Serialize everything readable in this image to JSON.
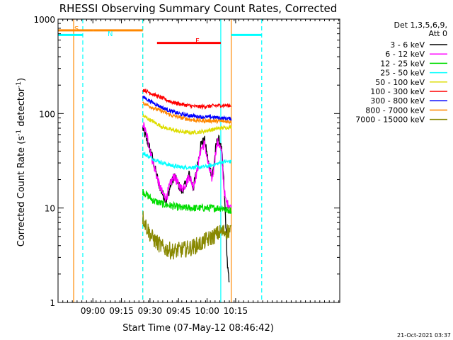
{
  "chart_data": {
    "type": "line",
    "title": "RHESSI Observing Summary Count Rates, Corrected",
    "ylabel_prefix": "Corrected Count Rate (s",
    "ylabel_sup": "-1",
    "ylabel_mid": " detector",
    "ylabel_sup2": "-1",
    "ylabel_suffix": ")",
    "xlabel": "Start Time (07-May-12 08:46:42)",
    "x_range_min": [
      -5,
      143
    ],
    "y_range": [
      1,
      1000
    ],
    "y_scale": "log",
    "yticks": [
      {
        "value": 1,
        "label": "1"
      },
      {
        "value": 10,
        "label": "10"
      },
      {
        "value": 100,
        "label": "100"
      },
      {
        "value": 1000,
        "label": "1000"
      }
    ],
    "xticks": [
      {
        "value": 13.3,
        "label": "09:00"
      },
      {
        "value": 28.3,
        "label": "09:15"
      },
      {
        "value": 43.3,
        "label": "09:30"
      },
      {
        "value": 58.3,
        "label": "09:45"
      },
      {
        "value": 73.3,
        "label": "10:00"
      },
      {
        "value": 88.3,
        "label": "10:15"
      }
    ],
    "legend": {
      "title_lines": [
        "Det 1,3,5,6,9,",
        "Att 0"
      ],
      "position": "right",
      "entries": [
        {
          "label": "3 - 6 keV",
          "color": "#000000"
        },
        {
          "label": "6 - 12 keV",
          "color": "#ff00ff"
        },
        {
          "label": "12 - 25 keV",
          "color": "#00dd00"
        },
        {
          "label": "25 - 50 keV",
          "color": "#00ffff"
        },
        {
          "label": "50 - 100 keV",
          "color": "#dddd00"
        },
        {
          "label": "100 - 300 keV",
          "color": "#ff0000"
        },
        {
          "label": "300 - 800 keV",
          "color": "#0000ff"
        },
        {
          "label": "800 - 7000 keV",
          "color": "#ff8800"
        },
        {
          "label": "7000 - 15000 keV",
          "color": "#888800"
        }
      ]
    },
    "series": [
      {
        "name": "3 - 6 keV",
        "color": "#000000",
        "noise": 0.05,
        "x": [
          39.5,
          42,
          44,
          46,
          48,
          50,
          52,
          54,
          56,
          58,
          60,
          62,
          64,
          66,
          68,
          70,
          72,
          74,
          76,
          77,
          78,
          79,
          80,
          81,
          82,
          83,
          84,
          85
        ],
        "y": [
          70,
          50,
          38,
          26,
          18,
          14,
          12,
          17,
          22,
          18,
          15,
          18,
          23,
          16,
          26,
          48,
          52,
          30,
          22,
          30,
          45,
          55,
          50,
          40,
          20,
          8,
          2.5,
          1.5
        ]
      },
      {
        "name": "6 - 12 keV",
        "color": "#ff00ff",
        "noise": 0.05,
        "x": [
          39.5,
          42,
          44,
          46,
          48,
          50,
          52,
          54,
          56,
          58,
          60,
          62,
          64,
          66,
          68,
          70,
          72,
          74,
          76,
          77,
          78,
          79,
          80,
          81,
          82,
          83,
          84,
          85,
          86
        ],
        "y": [
          80,
          55,
          36,
          25,
          18,
          14,
          13,
          18,
          22,
          18,
          16,
          18,
          22,
          17,
          24,
          42,
          48,
          28,
          20,
          28,
          42,
          50,
          45,
          38,
          18,
          12,
          11,
          11,
          10
        ]
      },
      {
        "name": "12 - 25 keV",
        "color": "#00dd00",
        "noise": 0.04,
        "x": [
          39.5,
          45,
          50,
          55,
          60,
          65,
          70,
          75,
          80,
          82,
          83,
          86
        ],
        "y": [
          15,
          12,
          11,
          10.5,
          10,
          10,
          10,
          10,
          10,
          10,
          9.5,
          9.5
        ]
      },
      {
        "name": "25 - 50 keV",
        "color": "#00ffff",
        "noise": 0.02,
        "x": [
          39.5,
          45,
          50,
          55,
          60,
          65,
          70,
          75,
          80,
          82,
          86
        ],
        "y": [
          38,
          33,
          30,
          28,
          27,
          27,
          27,
          28,
          30,
          31,
          31
        ]
      },
      {
        "name": "50 - 100 keV",
        "color": "#dddd00",
        "noise": 0.02,
        "x": [
          39.5,
          45,
          50,
          55,
          60,
          65,
          70,
          75,
          80,
          86
        ],
        "y": [
          95,
          82,
          72,
          67,
          64,
          63,
          64,
          67,
          70,
          72
        ]
      },
      {
        "name": "100 - 300 keV",
        "color": "#ff0000",
        "noise": 0.02,
        "x": [
          39.5,
          45,
          50,
          55,
          60,
          65,
          70,
          75,
          80,
          86
        ],
        "y": [
          180,
          160,
          145,
          132,
          125,
          120,
          118,
          120,
          122,
          122
        ]
      },
      {
        "name": "300 - 800 keV",
        "color": "#0000ff",
        "noise": 0.02,
        "x": [
          39.5,
          45,
          50,
          55,
          60,
          65,
          70,
          75,
          80,
          86
        ],
        "y": [
          150,
          130,
          115,
          105,
          98,
          95,
          92,
          92,
          90,
          88
        ]
      },
      {
        "name": "800 - 7000 keV",
        "color": "#ff8800",
        "noise": 0.02,
        "x": [
          39.5,
          45,
          50,
          55,
          60,
          65,
          70,
          75,
          80,
          86
        ],
        "y": [
          130,
          115,
          105,
          95,
          90,
          86,
          84,
          84,
          83,
          82
        ]
      },
      {
        "name": "7000 - 15000 keV",
        "color": "#888800",
        "noise": 0.09,
        "x": [
          39.5,
          42,
          44,
          46,
          50,
          55,
          60,
          65,
          70,
          75,
          80,
          86
        ],
        "y": [
          8,
          6,
          5,
          4.5,
          3.8,
          3.5,
          3.6,
          3.8,
          4.2,
          4.8,
          5.5,
          5.8
        ]
      }
    ],
    "bars": [
      {
        "label": "S",
        "color": "#ff8800",
        "x_start": -5,
        "x_end": 13.3,
        "y": 760,
        "line": "none"
      },
      {
        "label": "",
        "color": "#ff8800",
        "x_start": 13.3,
        "x_end": 39.5,
        "y": 760,
        "line": "none"
      },
      {
        "label": "N",
        "color": "#00ffff",
        "x_start": -5,
        "x_end": 8,
        "y": 680,
        "line": "none"
      },
      {
        "label": "",
        "color": "#00ffff",
        "x_start": 86,
        "x_end": 102,
        "y": 680,
        "line": "none"
      },
      {
        "label": "F",
        "color": "#ff0000",
        "x_start": 47,
        "x_end": 80.5,
        "y": 560,
        "line": "none"
      }
    ],
    "vlines": [
      {
        "x": 3.2,
        "color": "#ff8800",
        "style": "solid"
      },
      {
        "x": 8,
        "color": "#00ffff",
        "style": "dashed"
      },
      {
        "x": 39.5,
        "color": "#ff8800",
        "style": "dashed"
      },
      {
        "x": 39.5,
        "color": "#00ffff",
        "style": "dashed"
      },
      {
        "x": 80.5,
        "color": "#00ffff",
        "style": "solid"
      },
      {
        "x": 86,
        "color": "#ff8800",
        "style": "solid"
      },
      {
        "x": 102,
        "color": "#00ffff",
        "style": "dashed"
      }
    ],
    "timestamp": "21-Oct-2021 03:37"
  }
}
